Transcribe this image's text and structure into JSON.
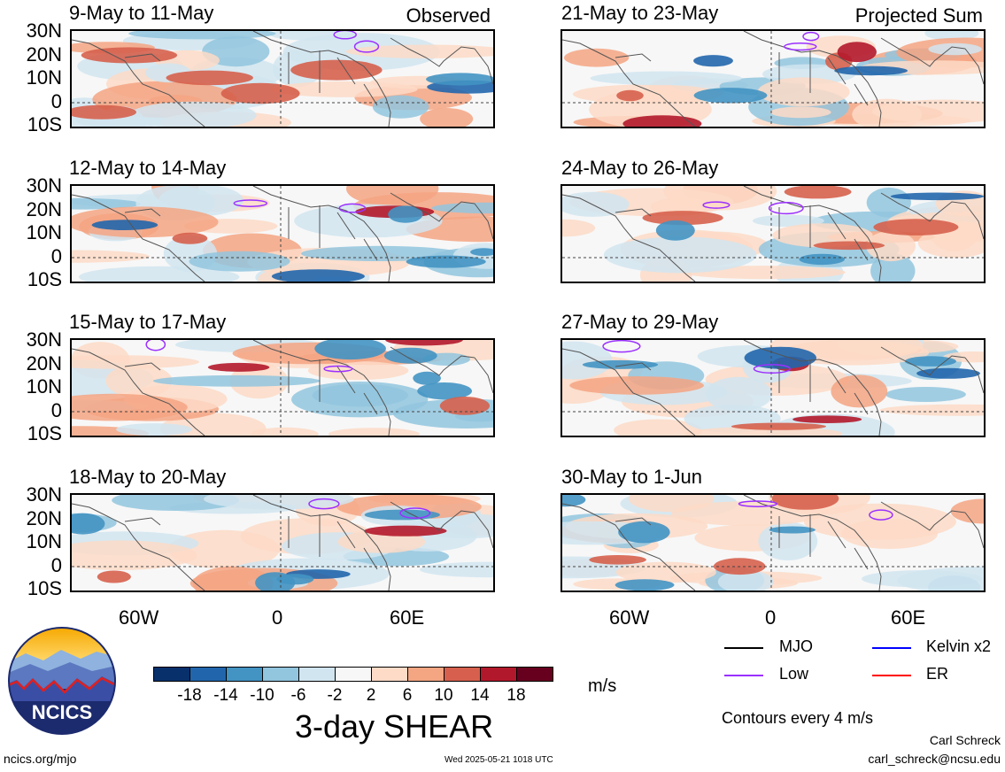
{
  "panels": [
    {
      "title": "9-May to 11-May",
      "tag": "Observed",
      "side": "left",
      "row": 0
    },
    {
      "title": "12-May to 14-May",
      "tag": "",
      "side": "left",
      "row": 1
    },
    {
      "title": "15-May to 17-May",
      "tag": "",
      "side": "left",
      "row": 2
    },
    {
      "title": "18-May to 20-May",
      "tag": "",
      "side": "left",
      "row": 3
    },
    {
      "title": "21-May to 23-May",
      "tag": "Projected Sum",
      "side": "right",
      "row": 0
    },
    {
      "title": "24-May to 26-May",
      "tag": "",
      "side": "right",
      "row": 1
    },
    {
      "title": "27-May to 29-May",
      "tag": "",
      "side": "right",
      "row": 2
    },
    {
      "title": "30-May to 1-Jun",
      "tag": "",
      "side": "right",
      "row": 3
    }
  ],
  "lat_labels": [
    "30N",
    "20N",
    "10N",
    "0",
    "10S"
  ],
  "lon_labels": [
    "60W",
    "0",
    "60E"
  ],
  "colorbar": {
    "colors": [
      "#08306b",
      "#2166ac",
      "#4393c3",
      "#92c5de",
      "#d1e5f0",
      "#f7f7f7",
      "#fddbc7",
      "#f4a582",
      "#d6604d",
      "#b2182b",
      "#67001f"
    ],
    "labels": [
      "-18",
      "-14",
      "-10",
      "-6",
      "-2",
      "2",
      "6",
      "10",
      "14",
      "18"
    ],
    "unit": "m/s",
    "title": "3-day SHEAR"
  },
  "legend": {
    "items": [
      {
        "label": "MJO",
        "color": "#000000"
      },
      {
        "label": "Kelvin x2",
        "color": "#0000ff"
      },
      {
        "label": "Low",
        "color": "#9b30ff"
      },
      {
        "label": "ER",
        "color": "#ff0000"
      }
    ],
    "note": "Contours every 4 m/s"
  },
  "logo": {
    "text": "NCICS"
  },
  "footer": {
    "url": "ncics.org/mjo",
    "timestamp": "Wed 2025-05-21 1018 UTC",
    "author": "Carl Schreck",
    "email": "carl_schreck@ncsu.edu"
  }
}
